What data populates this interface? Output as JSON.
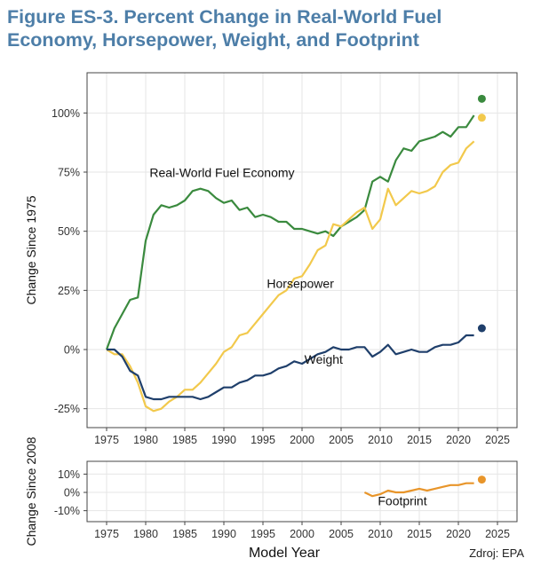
{
  "title": "Figure ES-3. Percent Change in Real-World Fuel Economy, Horsepower, Weight, and Footprint",
  "source": "Zdroj: EPA",
  "colors": {
    "fuel_economy": "#3a8a3e",
    "horsepower": "#f2c94c",
    "weight": "#1f3f6b",
    "footprint": "#e8952a",
    "title": "#4d7ea8",
    "grid": "#e6e6e6"
  },
  "chart_data": [
    {
      "type": "line",
      "ylabel": "Change Since 1975",
      "xlabel": "",
      "xlim": [
        1972.5,
        2027.5
      ],
      "ylim": [
        -33,
        117
      ],
      "xticks": [
        1975,
        1980,
        1985,
        1990,
        1995,
        2000,
        2005,
        2010,
        2015,
        2020,
        2025
      ],
      "yticks": [
        -25,
        0,
        25,
        50,
        75,
        100
      ],
      "ytick_labels": [
        "-25%",
        "0%",
        "25%",
        "50%",
        "75%",
        "100%"
      ],
      "grid": true,
      "series": [
        {
          "name": "Real-World Fuel Economy",
          "color_key": "fuel_economy",
          "x": [
            1975,
            1976,
            1977,
            1978,
            1979,
            1980,
            1981,
            1982,
            1983,
            1984,
            1985,
            1986,
            1987,
            1988,
            1989,
            1990,
            1991,
            1992,
            1993,
            1994,
            1995,
            1996,
            1997,
            1998,
            1999,
            2000,
            2001,
            2002,
            2003,
            2004,
            2005,
            2006,
            2007,
            2008,
            2009,
            2010,
            2011,
            2012,
            2013,
            2014,
            2015,
            2016,
            2017,
            2018,
            2019,
            2020,
            2021,
            2022
          ],
          "y": [
            0,
            9,
            15,
            21,
            22,
            46,
            57,
            61,
            60,
            61,
            63,
            67,
            68,
            67,
            64,
            62,
            63,
            59,
            60,
            56,
            57,
            56,
            54,
            54,
            51,
            51,
            50,
            49,
            50,
            48,
            52,
            54,
            56,
            59,
            71,
            73,
            71,
            80,
            85,
            84,
            88,
            89,
            90,
            92,
            90,
            94,
            94,
            99
          ],
          "end_point": {
            "x": 2023,
            "y": 106
          }
        },
        {
          "name": "Horsepower",
          "color_key": "horsepower",
          "x": [
            1975,
            1976,
            1977,
            1978,
            1979,
            1980,
            1981,
            1982,
            1983,
            1984,
            1985,
            1986,
            1987,
            1988,
            1989,
            1990,
            1991,
            1992,
            1993,
            1994,
            1995,
            1996,
            1997,
            1998,
            1999,
            2000,
            2001,
            2002,
            2003,
            2004,
            2005,
            2006,
            2007,
            2008,
            2009,
            2010,
            2011,
            2012,
            2013,
            2014,
            2015,
            2016,
            2017,
            2018,
            2019,
            2020,
            2021,
            2022
          ],
          "y": [
            0,
            -2,
            -2,
            -7,
            -14,
            -24,
            -26,
            -25,
            -22,
            -20,
            -17,
            -17,
            -14,
            -10,
            -6,
            -1,
            1,
            6,
            7,
            11,
            15,
            19,
            23,
            25,
            30,
            31,
            36,
            42,
            44,
            53,
            52,
            55,
            58,
            60,
            51,
            55,
            68,
            61,
            64,
            67,
            66,
            67,
            69,
            75,
            78,
            79,
            85,
            88
          ],
          "end_point": {
            "x": 2023,
            "y": 98
          }
        },
        {
          "name": "Weight",
          "color_key": "weight",
          "x": [
            1975,
            1976,
            1977,
            1978,
            1979,
            1980,
            1981,
            1982,
            1983,
            1984,
            1985,
            1986,
            1987,
            1988,
            1989,
            1990,
            1991,
            1992,
            1993,
            1994,
            1995,
            1996,
            1997,
            1998,
            1999,
            2000,
            2001,
            2002,
            2003,
            2004,
            2005,
            2006,
            2007,
            2008,
            2009,
            2010,
            2011,
            2012,
            2013,
            2014,
            2015,
            2016,
            2017,
            2018,
            2019,
            2020,
            2021,
            2022
          ],
          "y": [
            0,
            0,
            -3,
            -9,
            -11,
            -20,
            -21,
            -21,
            -20,
            -20,
            -20,
            -20,
            -21,
            -20,
            -18,
            -16,
            -16,
            -14,
            -13,
            -11,
            -11,
            -10,
            -8,
            -7,
            -5,
            -6,
            -4,
            -2,
            -1,
            1,
            0,
            0,
            1,
            1,
            -3,
            -1,
            2,
            -2,
            -1,
            0,
            -1,
            -1,
            1,
            2,
            2,
            3,
            6,
            6
          ],
          "end_point": {
            "x": 2023,
            "y": 9
          }
        }
      ],
      "annotations": [
        {
          "text": "Real-World Fuel Economy",
          "x": 1980.5,
          "y": 73
        },
        {
          "text": "Horsepower",
          "x": 1995.5,
          "y": 26
        },
        {
          "text": "Weight",
          "x": 2000.3,
          "y": -6
        }
      ]
    },
    {
      "type": "line",
      "ylabel": "Change Since 2008",
      "xlabel": "Model Year",
      "xlim": [
        1972.5,
        2027.5
      ],
      "ylim": [
        -16,
        17
      ],
      "xticks": [
        1975,
        1980,
        1985,
        1990,
        1995,
        2000,
        2005,
        2010,
        2015,
        2020,
        2025
      ],
      "yticks": [
        -10,
        0,
        10
      ],
      "ytick_labels": [
        "-10%",
        "0%",
        "10%"
      ],
      "grid": true,
      "series": [
        {
          "name": "Footprint",
          "color_key": "footprint",
          "x": [
            2008,
            2009,
            2010,
            2011,
            2012,
            2013,
            2014,
            2015,
            2016,
            2017,
            2018,
            2019,
            2020,
            2021,
            2022
          ],
          "y": [
            0,
            -2,
            -1,
            1,
            0,
            0,
            1,
            2,
            1,
            2,
            3,
            4,
            4,
            5,
            5
          ],
          "end_point": {
            "x": 2023,
            "y": 7
          }
        }
      ],
      "annotations": [
        {
          "text": "Footprint",
          "x": 2009.7,
          "y": -7
        }
      ]
    }
  ]
}
